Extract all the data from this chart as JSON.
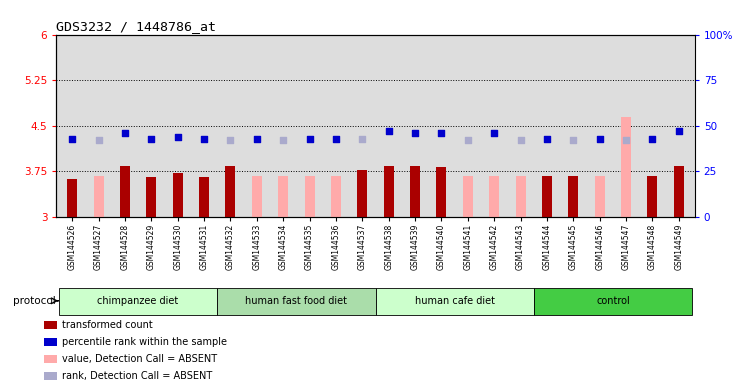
{
  "title": "GDS3232 / 1448786_at",
  "samples": [
    "GSM144526",
    "GSM144527",
    "GSM144528",
    "GSM144529",
    "GSM144530",
    "GSM144531",
    "GSM144532",
    "GSM144533",
    "GSM144534",
    "GSM144535",
    "GSM144536",
    "GSM144537",
    "GSM144538",
    "GSM144539",
    "GSM144540",
    "GSM144541",
    "GSM144542",
    "GSM144543",
    "GSM144544",
    "GSM144545",
    "GSM144546",
    "GSM144547",
    "GSM144548",
    "GSM144549"
  ],
  "transformed_count": [
    3.62,
    null,
    3.84,
    3.65,
    3.72,
    3.65,
    3.83,
    null,
    null,
    null,
    null,
    3.78,
    3.84,
    3.84,
    3.82,
    null,
    null,
    null,
    3.68,
    3.68,
    null,
    null,
    3.68,
    3.84
  ],
  "transformed_count_absent": [
    null,
    3.68,
    null,
    null,
    null,
    null,
    null,
    3.68,
    3.68,
    3.68,
    3.68,
    null,
    null,
    null,
    null,
    3.68,
    3.68,
    3.68,
    null,
    null,
    3.68,
    4.65,
    null,
    null
  ],
  "percentile_rank": [
    43,
    null,
    46,
    43,
    44,
    43,
    null,
    43,
    null,
    43,
    43,
    null,
    47,
    46,
    46,
    null,
    46,
    null,
    43,
    null,
    43,
    null,
    43,
    47
  ],
  "percentile_rank_absent": [
    null,
    42,
    null,
    null,
    null,
    null,
    42,
    null,
    42,
    null,
    null,
    43,
    null,
    null,
    null,
    42,
    null,
    42,
    null,
    42,
    null,
    42,
    null,
    null
  ],
  "groups": [
    {
      "label": "chimpanzee diet",
      "start": 0,
      "end": 5,
      "color": "#ccffcc"
    },
    {
      "label": "human fast food diet",
      "start": 6,
      "end": 11,
      "color": "#99ee99"
    },
    {
      "label": "human cafe diet",
      "start": 12,
      "end": 17,
      "color": "#ccffcc"
    },
    {
      "label": "control",
      "start": 18,
      "end": 23,
      "color": "#55dd55"
    }
  ],
  "ylim_left": [
    3.0,
    6.0
  ],
  "ylim_right": [
    0,
    100
  ],
  "yticks_left": [
    3.0,
    3.75,
    4.5,
    5.25,
    6.0
  ],
  "ytick_labels_left": [
    "3",
    "3.75",
    "4.5",
    "5.25",
    "6"
  ],
  "yticks_right": [
    0,
    25,
    50,
    75,
    100
  ],
  "ytick_labels_right": [
    "0",
    "25",
    "50",
    "75",
    "100%"
  ],
  "hlines": [
    3.75,
    4.5,
    5.25
  ],
  "bar_color_present": "#aa0000",
  "bar_color_absent": "#ffaaaa",
  "dot_color_present": "#0000cc",
  "dot_color_absent": "#aaaacc",
  "bg_color": "#dddddd",
  "group_colors": [
    "#ccffcc",
    "#aaddaa",
    "#ccffcc",
    "#44cc44"
  ]
}
